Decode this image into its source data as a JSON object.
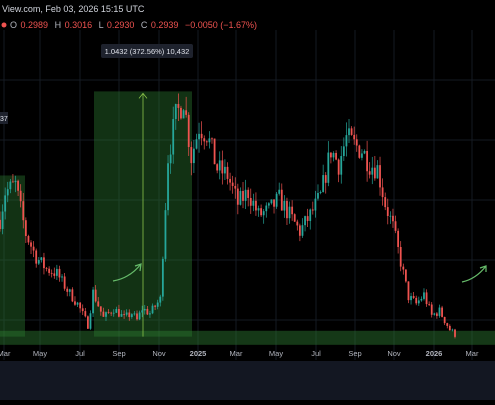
{
  "header": {
    "source_line": "View.com, Feb 03, 2026 15:15 UTC",
    "ohlc": {
      "o_label": "O",
      "o_value": "0.2989",
      "h_label": "H",
      "h_value": "0.3016",
      "l_label": "L",
      "l_value": "0.2930",
      "c_label": "C",
      "c_value": "0.2939",
      "change": "−0.0050 (−1.67%)"
    },
    "header_dot_color": "#ef5350"
  },
  "annotations": {
    "measure_label": "1.0432 (372.56%) 10,432",
    "left_label_fragment": "37"
  },
  "colors": {
    "background": "#000000",
    "grid": "#151a22",
    "up": "#26a69a",
    "down": "#ef5350",
    "zone_fill": "#2e7d32",
    "arrow": "#66bb6a",
    "axis_text": "#b2b5be"
  },
  "chart_data": {
    "type": "candlestick",
    "title": "",
    "xlabel": "",
    "ylabel": "",
    "x_ticks": [
      "Mar",
      "May",
      "Jul",
      "Sep",
      "Nov",
      "2025",
      "Mar",
      "May",
      "Jul",
      "Sep",
      "Nov",
      "2026",
      "Mar"
    ],
    "x_tick_bold": [
      false,
      false,
      false,
      false,
      false,
      true,
      false,
      false,
      false,
      false,
      false,
      true,
      false
    ],
    "y_axis_visible": false,
    "grid": true,
    "ylim": [
      0.18,
      1.55
    ],
    "support_zone": [
      0.245,
      0.305
    ],
    "measure_zone": {
      "from_x": "Jul",
      "to_x": "Dec",
      "low": 0.28,
      "high": 1.33
    },
    "left_zone": {
      "from_x": "Jan",
      "to_x": "Apr",
      "low": 0.28,
      "high": 0.97
    },
    "trend_anchors": [
      {
        "t": 0,
        "v": 0.78
      },
      {
        "t": 2,
        "v": 0.9
      },
      {
        "t": 6,
        "v": 0.93
      },
      {
        "t": 10,
        "v": 0.72
      },
      {
        "t": 14,
        "v": 0.62
      },
      {
        "t": 18,
        "v": 0.57
      },
      {
        "t": 22,
        "v": 0.55
      },
      {
        "t": 26,
        "v": 0.48
      },
      {
        "t": 30,
        "v": 0.42
      },
      {
        "t": 34,
        "v": 0.33
      },
      {
        "t": 36,
        "v": 0.47
      },
      {
        "t": 40,
        "v": 0.36
      },
      {
        "t": 44,
        "v": 0.4
      },
      {
        "t": 48,
        "v": 0.36
      },
      {
        "t": 51,
        "v": 0.38
      },
      {
        "t": 53,
        "v": 0.35
      },
      {
        "t": 55,
        "v": 0.4
      },
      {
        "t": 58,
        "v": 0.38
      },
      {
        "t": 62,
        "v": 0.44
      },
      {
        "t": 65,
        "v": 1.05
      },
      {
        "t": 68,
        "v": 1.22
      },
      {
        "t": 71,
        "v": 1.3
      },
      {
        "t": 74,
        "v": 1.05
      },
      {
        "t": 77,
        "v": 1.18
      },
      {
        "t": 80,
        "v": 1.15
      },
      {
        "t": 84,
        "v": 1.0
      },
      {
        "t": 88,
        "v": 0.97
      },
      {
        "t": 92,
        "v": 0.85
      },
      {
        "t": 96,
        "v": 0.9
      },
      {
        "t": 100,
        "v": 0.8
      },
      {
        "t": 104,
        "v": 0.82
      },
      {
        "t": 108,
        "v": 0.87
      },
      {
        "t": 112,
        "v": 0.8
      },
      {
        "t": 116,
        "v": 0.73
      },
      {
        "t": 120,
        "v": 0.8
      },
      {
        "t": 124,
        "v": 0.88
      },
      {
        "t": 128,
        "v": 1.08
      },
      {
        "t": 131,
        "v": 1.02
      },
      {
        "t": 134,
        "v": 1.13
      },
      {
        "t": 137,
        "v": 1.1
      },
      {
        "t": 140,
        "v": 1.08
      },
      {
        "t": 143,
        "v": 1.02
      },
      {
        "t": 146,
        "v": 1.0
      },
      {
        "t": 149,
        "v": 0.85
      },
      {
        "t": 152,
        "v": 0.75
      },
      {
        "t": 155,
        "v": 0.6
      },
      {
        "t": 158,
        "v": 0.45
      },
      {
        "t": 161,
        "v": 0.42
      },
      {
        "t": 164,
        "v": 0.46
      },
      {
        "t": 167,
        "v": 0.37
      },
      {
        "t": 170,
        "v": 0.39
      },
      {
        "t": 174,
        "v": 0.31
      },
      {
        "t": 176,
        "v": 0.29
      }
    ]
  }
}
